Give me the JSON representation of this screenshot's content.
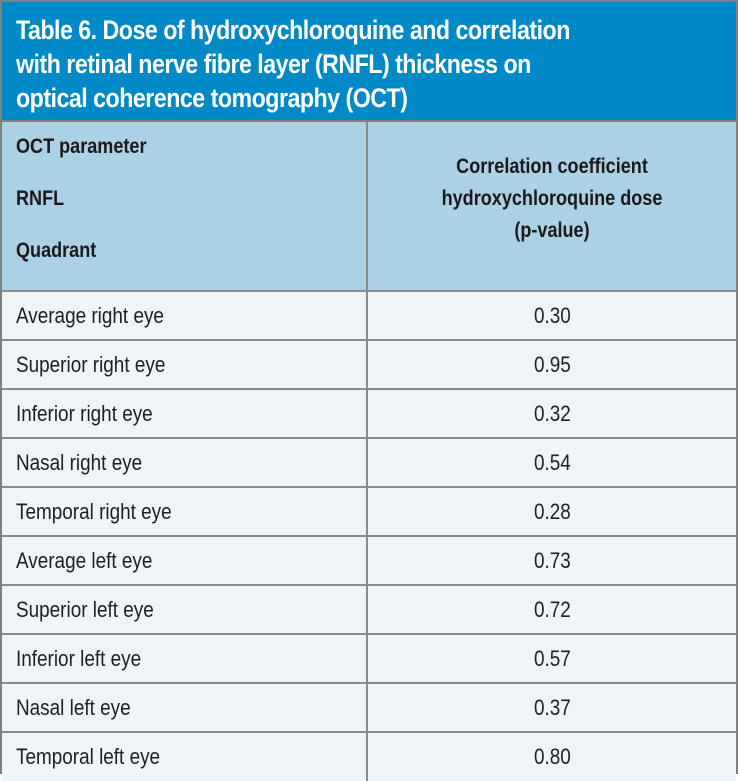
{
  "colors": {
    "accent": "#0089c7",
    "header_row_bg": "#acd0e4",
    "body_row_bg": "#eef4f8",
    "border": "#8a8a8a"
  },
  "table": {
    "title": "Table 6. Dose of hydroxychloroquine and correlation with retinal nerve fibre layer (RNFL) thickness on optical coherence tomography (OCT)",
    "title_lines": [
      "Table 6. Dose of hydroxychloroquine and correlation",
      "with retinal nerve fibre layer (RNFL) thickness on",
      "optical coherence tomography (OCT)"
    ],
    "header": {
      "left_lines": [
        "OCT parameter",
        "RNFL",
        "Quadrant"
      ],
      "right_lines": [
        "Correlation coefficient",
        "hydroxychloroquine dose",
        "(p-value)"
      ]
    },
    "rows": [
      {
        "parameter": "Average right eye",
        "value": "0.30"
      },
      {
        "parameter": "Superior right eye",
        "value": "0.95"
      },
      {
        "parameter": "Inferior right eye",
        "value": "0.32"
      },
      {
        "parameter": "Nasal right eye",
        "value": "0.54"
      },
      {
        "parameter": "Temporal right eye",
        "value": "0.28"
      },
      {
        "parameter": "Average left eye",
        "value": "0.73"
      },
      {
        "parameter": "Superior left eye",
        "value": "0.72"
      },
      {
        "parameter": "Inferior left eye",
        "value": "0.57"
      },
      {
        "parameter": "Nasal left eye",
        "value": "0.37"
      },
      {
        "parameter": "Temporal left eye",
        "value": "0.80"
      }
    ]
  }
}
